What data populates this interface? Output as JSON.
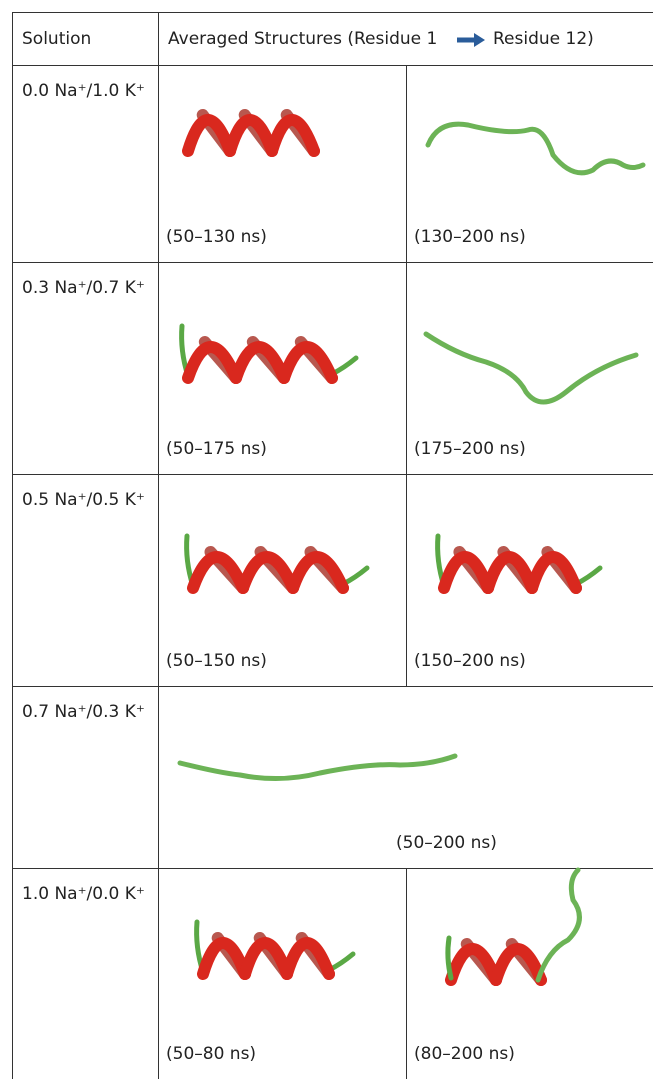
{
  "header": {
    "solution": "Solution",
    "structures": [
      "Averaged Structures (Residue 1",
      "Residue 12)"
    ]
  },
  "rows": [
    {
      "solution": "0.0 Na⁺/1.0 K⁺",
      "cells": [
        "(50–130 ns)",
        "(130–200 ns)"
      ]
    },
    {
      "solution": "0.3 Na⁺/0.7 K⁺",
      "cells": [
        "(50–175 ns)",
        "(175–200 ns)"
      ]
    },
    {
      "solution": "0.5 Na⁺/0.5 K⁺",
      "cells": [
        "(50–150 ns)",
        "(150–200 ns)"
      ]
    },
    {
      "solution": "0.7 Na⁺/0.3 K⁺",
      "cells": [
        "(50–200 ns)"
      ]
    },
    {
      "solution": "1.0 Na⁺/0.0 K⁺",
      "cells": [
        "(50–80 ns)",
        "(80–200 ns)"
      ]
    }
  ]
}
